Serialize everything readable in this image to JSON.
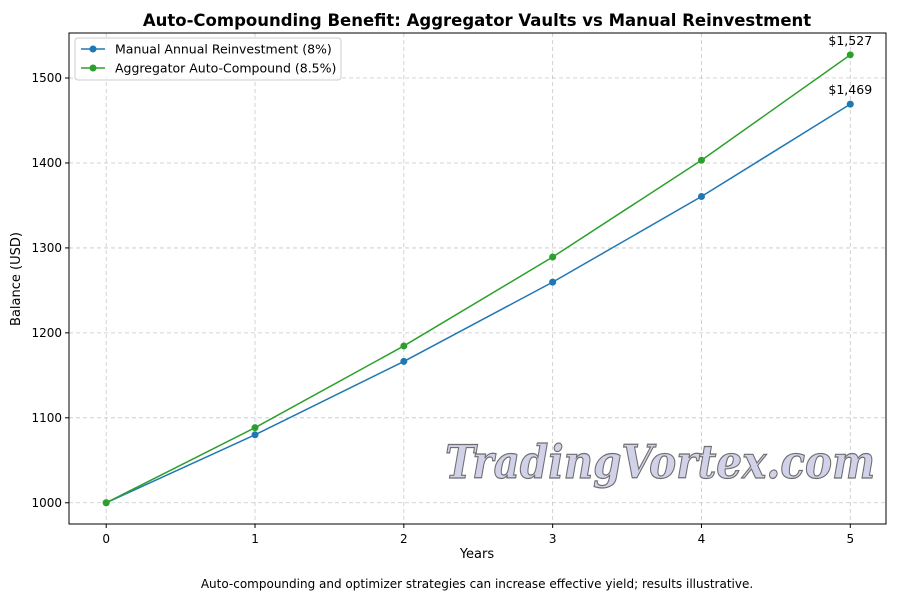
{
  "chart_data": {
    "type": "line",
    "title": "Auto-Compounding Benefit: Aggregator Vaults vs Manual Reinvestment",
    "xlabel": "Years",
    "ylabel": "Balance (USD)",
    "x": [
      0,
      1,
      2,
      3,
      4,
      5
    ],
    "xticks": [
      "0",
      "1",
      "2",
      "3",
      "4",
      "5"
    ],
    "yticks": [
      "1000",
      "1100",
      "1200",
      "1300",
      "1400",
      "1500"
    ],
    "xlim": [
      -0.25,
      5.24
    ],
    "ylim": [
      975,
      1553
    ],
    "grid": true,
    "legend_position": "top-left",
    "series": [
      {
        "name": "Manual Annual Reinvestment (8%)",
        "color": "#1f77b4",
        "values": [
          1000,
          1080,
          1166.4,
          1259.7,
          1360.5,
          1469.3
        ]
      },
      {
        "name": "Aggregator Auto-Compound (8.5%)",
        "color": "#2ca02c",
        "values": [
          1000,
          1088.4,
          1184.6,
          1289.3,
          1403.2,
          1527.3
        ]
      }
    ],
    "annotations": [
      "$1,469",
      "$1,527"
    ],
    "caption": "Auto-compounding and optimizer strategies can increase effective yield; results illustrative."
  },
  "watermark": "TradingVortex.com"
}
